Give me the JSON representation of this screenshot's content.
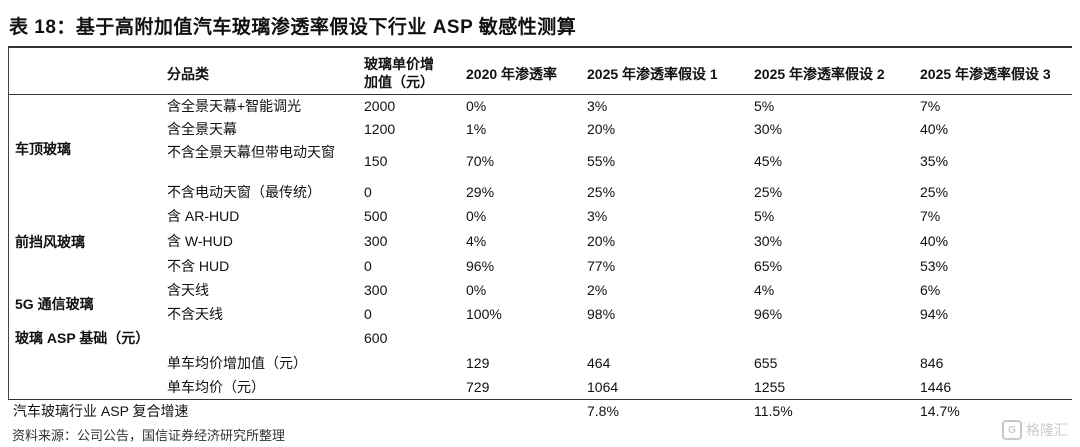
{
  "title": "表 18：基于高附加值汽车玻璃渗透率假设下行业 ASP 敏感性测算",
  "headers": {
    "category": "分品类",
    "unit_value_line1": "玻璃单价增",
    "unit_value_line2": "加值（元）",
    "y2020": "2020 年渗透率",
    "h1": "2025 年渗透率假设 1",
    "h2": "2025 年渗透率假设 2",
    "h3": "2025 年渗透率假设 3"
  },
  "groups": {
    "roof": "车顶玻璃",
    "windshield": "前挡风玻璃",
    "g5": "5G 通信玻璃",
    "asp_base": "玻璃 ASP 基础（元）"
  },
  "rows": [
    {
      "cat": "含全景天幕+智能调光",
      "val": "2000",
      "y2020": "0%",
      "h1": "3%",
      "h2": "5%",
      "h3": "7%"
    },
    {
      "cat": "含全景天幕",
      "val": "1200",
      "y2020": "1%",
      "h1": "20%",
      "h2": "30%",
      "h3": "40%"
    },
    {
      "cat": "不含全景天幕但带电动天窗",
      "val": "150",
      "y2020": "70%",
      "h1": "55%",
      "h2": "45%",
      "h3": "35%"
    },
    {
      "cat": "不含电动天窗（最传统）",
      "val": "0",
      "y2020": "29%",
      "h1": "25%",
      "h2": "25%",
      "h3": "25%"
    },
    {
      "cat": "含 AR-HUD",
      "val": "500",
      "y2020": "0%",
      "h1": "3%",
      "h2": "5%",
      "h3": "7%"
    },
    {
      "cat": "含 W-HUD",
      "val": "300",
      "y2020": "4%",
      "h1": "20%",
      "h2": "30%",
      "h3": "40%"
    },
    {
      "cat": "不含 HUD",
      "val": "0",
      "y2020": "96%",
      "h1": "77%",
      "h2": "65%",
      "h3": "53%"
    },
    {
      "cat": "含天线",
      "val": "300",
      "y2020": "0%",
      "h1": "2%",
      "h2": "4%",
      "h3": "6%"
    },
    {
      "cat": "不含天线",
      "val": "0",
      "y2020": "100%",
      "h1": "98%",
      "h2": "96%",
      "h3": "94%"
    }
  ],
  "asp_base_value": "600",
  "summary": [
    {
      "label": "单车均价增加值（元）",
      "y2020": "129",
      "h1": "464",
      "h2": "655",
      "h3": "846"
    },
    {
      "label": "单车均价（元）",
      "y2020": "729",
      "h1": "1064",
      "h2": "1255",
      "h3": "1446"
    }
  ],
  "cagr": {
    "label": "汽车玻璃行业 ASP 复合增速",
    "h1": "7.8%",
    "h2": "11.5%",
    "h3": "14.7%"
  },
  "source": "资料来源：公司公告，国信证券经济研究所整理",
  "watermark": "格隆汇"
}
